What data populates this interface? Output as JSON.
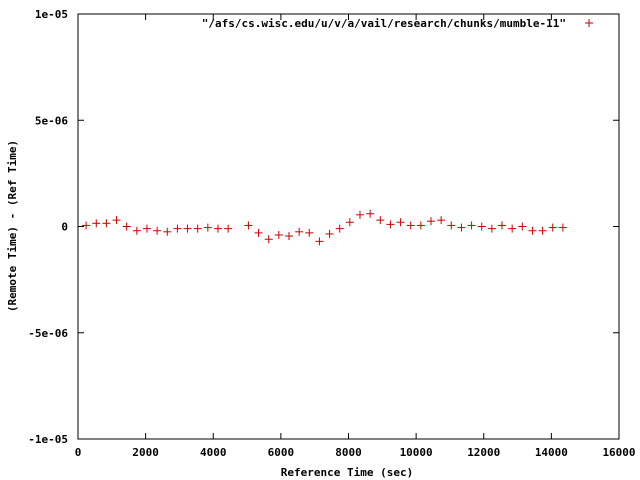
{
  "chart_data": {
    "type": "scatter",
    "xlabel": "Reference Time (sec)",
    "ylabel": "(Remote Time) - (Ref Time)",
    "xlim": [
      0,
      16000
    ],
    "ylim": [
      -1e-05,
      1e-05
    ],
    "xticks": [
      {
        "value": 0,
        "label": "0"
      },
      {
        "value": 2000,
        "label": "2000"
      },
      {
        "value": 4000,
        "label": "4000"
      },
      {
        "value": 6000,
        "label": "6000"
      },
      {
        "value": 8000,
        "label": "8000"
      },
      {
        "value": 10000,
        "label": "10000"
      },
      {
        "value": 12000,
        "label": "12000"
      },
      {
        "value": 14000,
        "label": "14000"
      },
      {
        "value": 16000,
        "label": "16000"
      }
    ],
    "yticks": [
      {
        "value": 1e-05,
        "label": "1e-05"
      },
      {
        "value": 5e-06,
        "label": "5e-06"
      },
      {
        "value": 0,
        "label": "0"
      },
      {
        "value": -5e-06,
        "label": "-5e-06"
      },
      {
        "value": -1e-05,
        "label": "-1e-05"
      }
    ],
    "grid": false,
    "legend_position": "top-right",
    "series": [
      {
        "name": "\"/afs/cs.wisc.edu/u/v/a/vail/research/chunks/mumble-11\"",
        "color": "#cc0000",
        "marker": "plus",
        "x": [
          240,
          540,
          840,
          1140,
          1440,
          1740,
          2040,
          2340,
          2640,
          2940,
          3240,
          3540,
          3840,
          4140,
          4440,
          5040,
          5340,
          5640,
          5940,
          6240,
          6540,
          6840,
          7140,
          7440,
          7740,
          8040,
          8340,
          8640,
          8940,
          9240,
          9540,
          9840,
          10140,
          10440,
          10740,
          11040,
          11340,
          11640,
          11940,
          12240,
          12540,
          12840,
          13140,
          13440,
          13740,
          14040,
          14340
        ],
        "y": [
          5e-08,
          1.5e-07,
          1.5e-07,
          3e-07,
          0,
          -2e-07,
          -1e-07,
          -2e-07,
          -2.5e-07,
          -1e-07,
          -1e-07,
          -1e-07,
          -5e-08,
          -1e-07,
          -1e-07,
          5e-08,
          -3e-07,
          -6e-07,
          -4e-07,
          -4.5e-07,
          -2.5e-07,
          -3e-07,
          -7e-07,
          -3.5e-07,
          -1e-07,
          2e-07,
          5.5e-07,
          6e-07,
          3e-07,
          1e-07,
          2e-07,
          5e-08,
          5e-08,
          2.5e-07,
          3e-07,
          5e-08,
          -5e-08,
          5e-08,
          0,
          -1e-07,
          5e-08,
          -1e-07,
          0,
          -2e-07,
          -2e-07,
          -5e-08,
          -5e-08
        ]
      }
    ]
  }
}
